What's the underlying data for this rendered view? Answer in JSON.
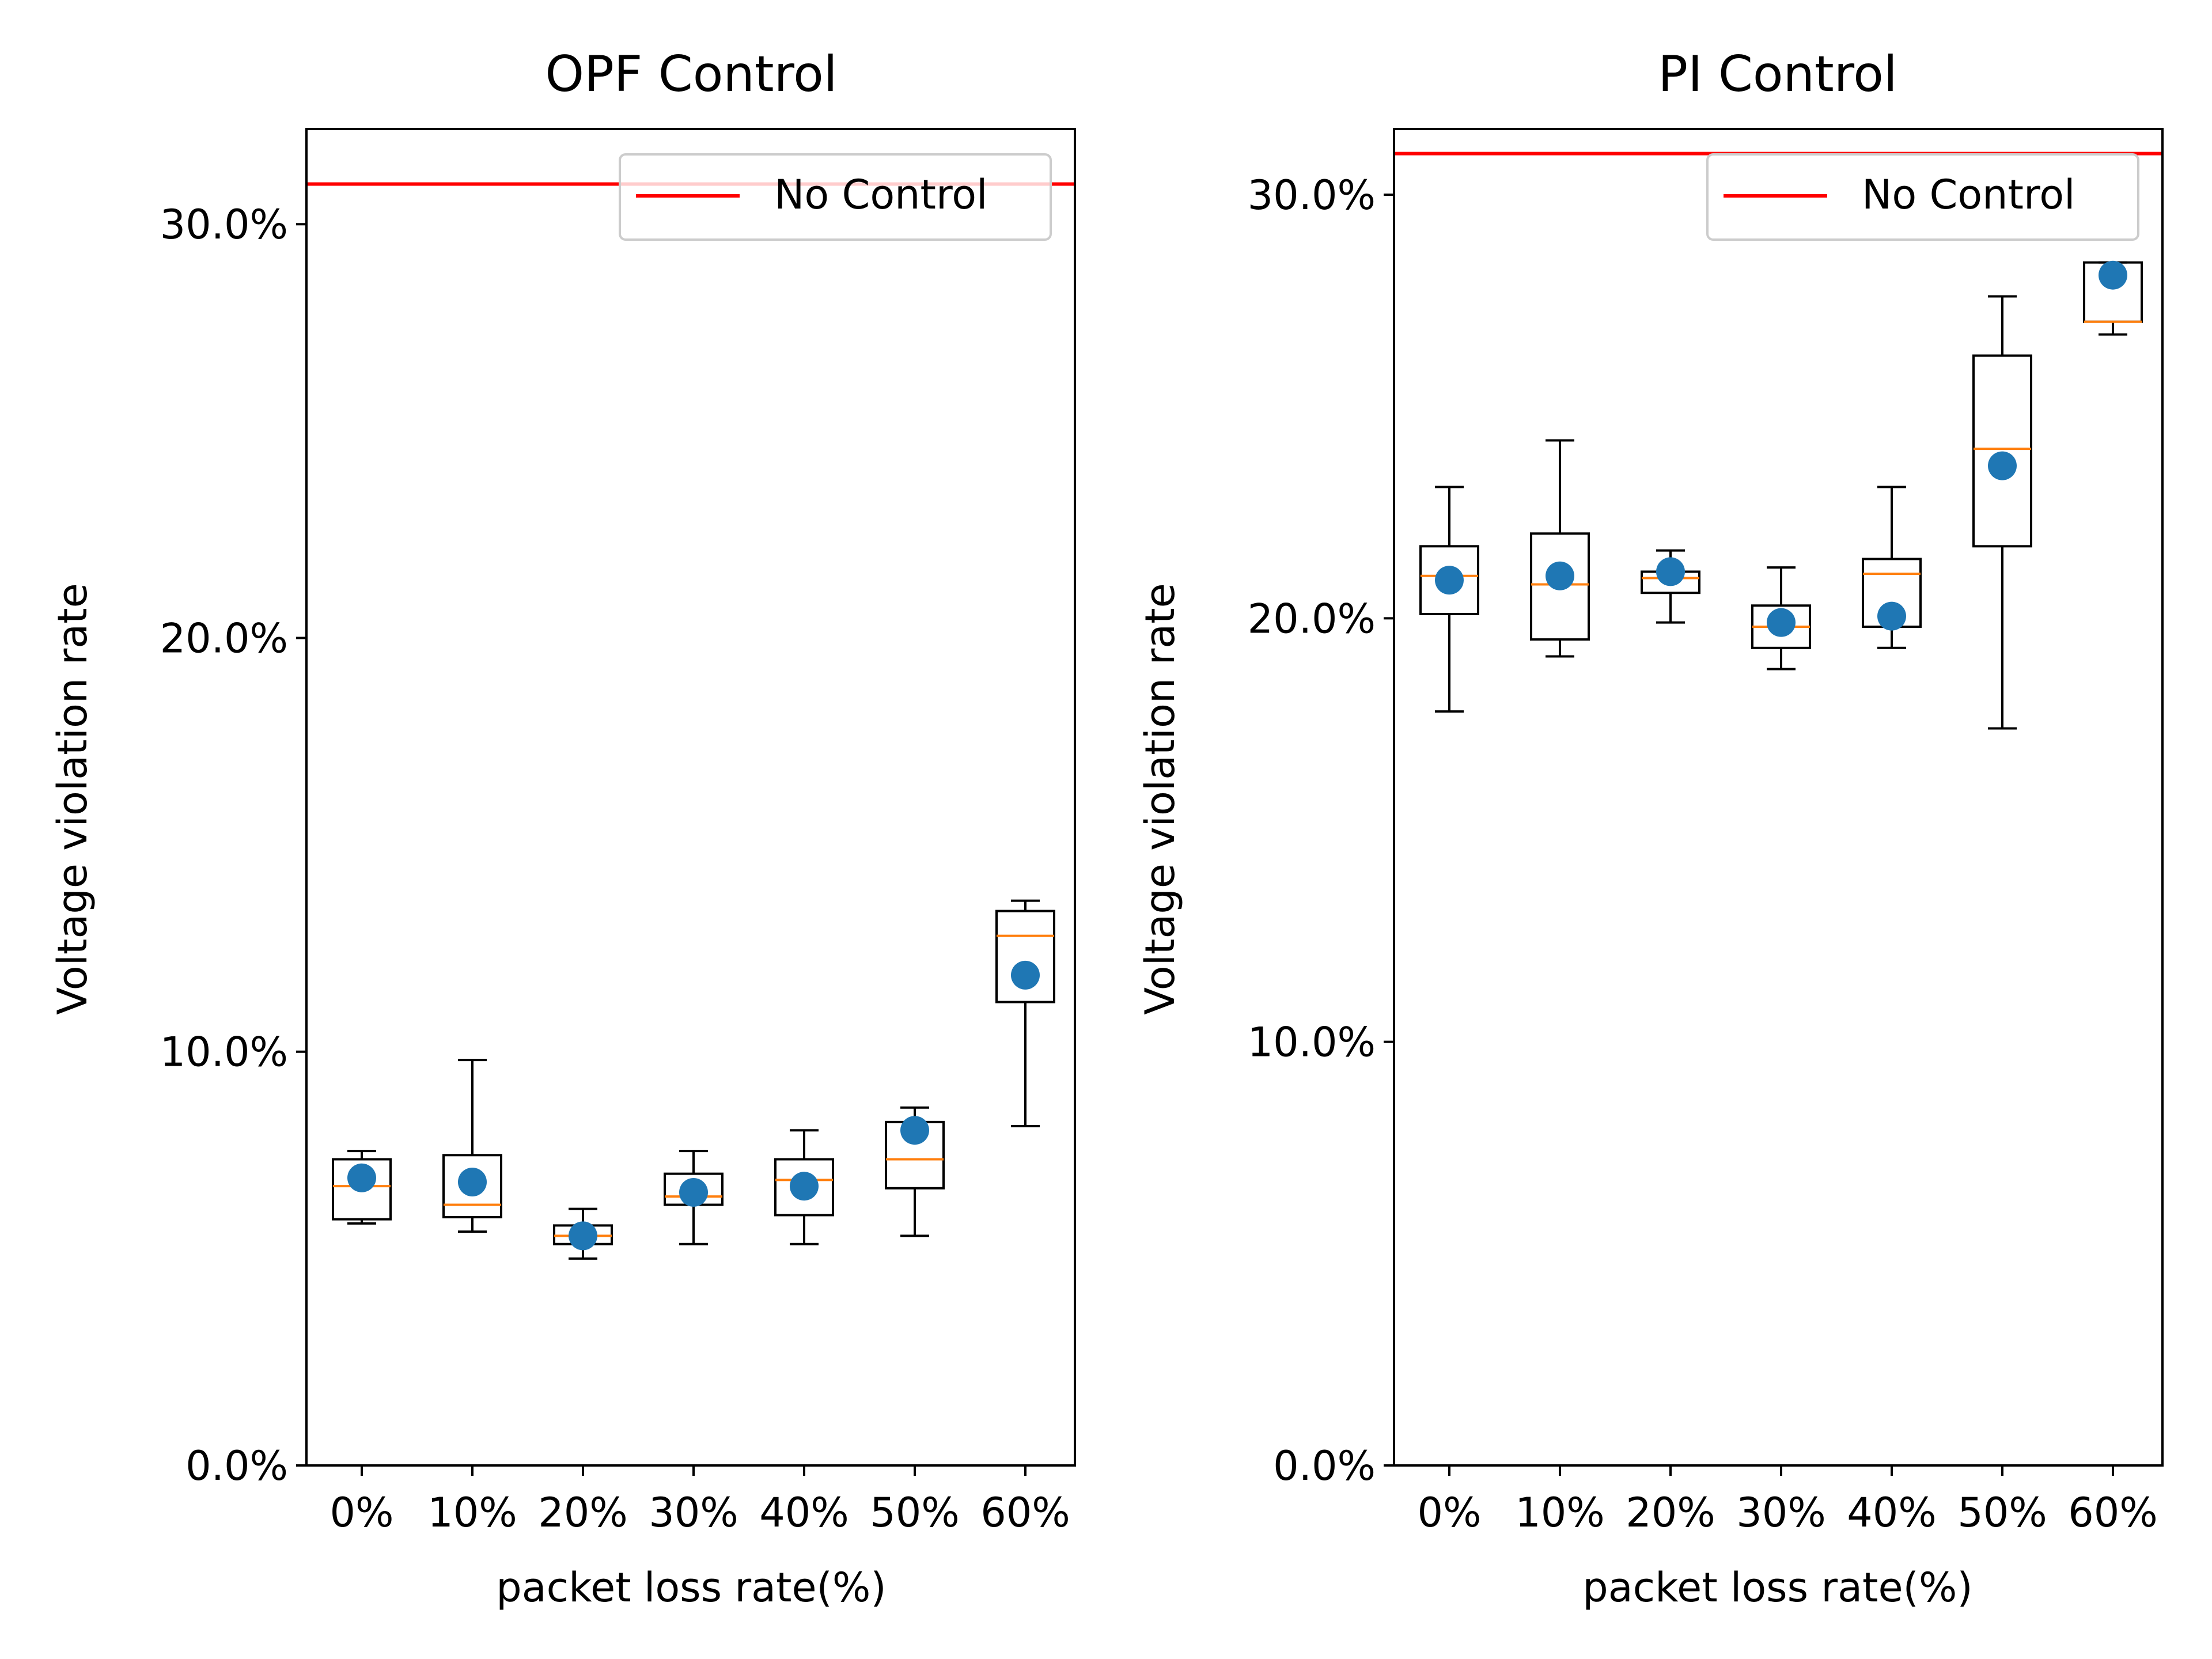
{
  "chart_data": [
    {
      "type": "box",
      "title": "OPF Control",
      "xlabel": "packet loss rate(%)",
      "ylabel": "Voltage violation rate",
      "categories": [
        "0%",
        "10%",
        "20%",
        "30%",
        "40%",
        "50%",
        "60%"
      ],
      "yticks": [
        "0.0%",
        "10.0%",
        "20.0%",
        "30.0%"
      ],
      "ylim": [
        0,
        32.3
      ],
      "reference_line": {
        "label": "No Control",
        "value": 30.97,
        "color": "#ff0000"
      },
      "legend": {
        "position": "top-right",
        "entries": [
          "No Control"
        ]
      },
      "boxes": [
        {
          "whislo": 5.85,
          "q1": 5.95,
          "median": 6.75,
          "q3": 7.4,
          "whishi": 7.6,
          "mean": 6.95
        },
        {
          "whislo": 5.65,
          "q1": 6.0,
          "median": 6.3,
          "q3": 7.5,
          "whishi": 9.8,
          "mean": 6.85
        },
        {
          "whislo": 5.0,
          "q1": 5.35,
          "median": 5.55,
          "q3": 5.8,
          "whishi": 6.2,
          "mean": 5.55
        },
        {
          "whislo": 5.35,
          "q1": 6.3,
          "median": 6.5,
          "q3": 7.05,
          "whishi": 7.6,
          "mean": 6.6
        },
        {
          "whislo": 5.35,
          "q1": 6.05,
          "median": 6.9,
          "q3": 7.4,
          "whishi": 8.1,
          "mean": 6.75
        },
        {
          "whislo": 5.55,
          "q1": 6.7,
          "median": 7.4,
          "q3": 8.3,
          "whishi": 8.65,
          "mean": 8.1
        },
        {
          "whislo": 8.2,
          "q1": 11.2,
          "median": 12.8,
          "q3": 13.4,
          "whishi": 13.65,
          "mean": 11.85
        }
      ],
      "colors": {
        "box": "#000000",
        "median": "#ff7f0e",
        "mean": "#1f77b4"
      }
    },
    {
      "type": "box",
      "title": "PI Control",
      "xlabel": "packet loss rate(%)",
      "ylabel": "Voltage violation rate",
      "categories": [
        "0%",
        "10%",
        "20%",
        "30%",
        "40%",
        "50%",
        "60%"
      ],
      "yticks": [
        "0.0%",
        "10.0%",
        "20.0%",
        "30.0%"
      ],
      "ylim": [
        0,
        31.55
      ],
      "reference_line": {
        "label": "No Control",
        "value": 30.97,
        "color": "#ff0000"
      },
      "legend": {
        "position": "top-right",
        "entries": [
          "No Control"
        ]
      },
      "boxes": [
        {
          "whislo": 17.8,
          "q1": 20.1,
          "median": 21.0,
          "q3": 21.7,
          "whishi": 23.1,
          "mean": 20.9
        },
        {
          "whislo": 19.1,
          "q1": 19.5,
          "median": 20.8,
          "q3": 22.0,
          "whishi": 24.2,
          "mean": 21.0
        },
        {
          "whislo": 19.9,
          "q1": 20.6,
          "median": 20.95,
          "q3": 21.1,
          "whishi": 21.6,
          "mean": 21.1
        },
        {
          "whislo": 18.8,
          "q1": 19.3,
          "median": 19.8,
          "q3": 20.3,
          "whishi": 21.2,
          "mean": 19.9
        },
        {
          "whislo": 19.3,
          "q1": 19.8,
          "median": 21.05,
          "q3": 21.4,
          "whishi": 23.1,
          "mean": 20.05
        },
        {
          "whislo": 17.4,
          "q1": 21.7,
          "median": 24.0,
          "q3": 26.2,
          "whishi": 27.6,
          "mean": 23.6
        },
        {
          "whislo": 26.7,
          "q1": 27.0,
          "median": 27.0,
          "q3": 28.4,
          "whishi": 28.4,
          "mean": 28.1
        }
      ],
      "colors": {
        "box": "#000000",
        "median": "#ff7f0e",
        "mean": "#1f77b4"
      }
    }
  ]
}
